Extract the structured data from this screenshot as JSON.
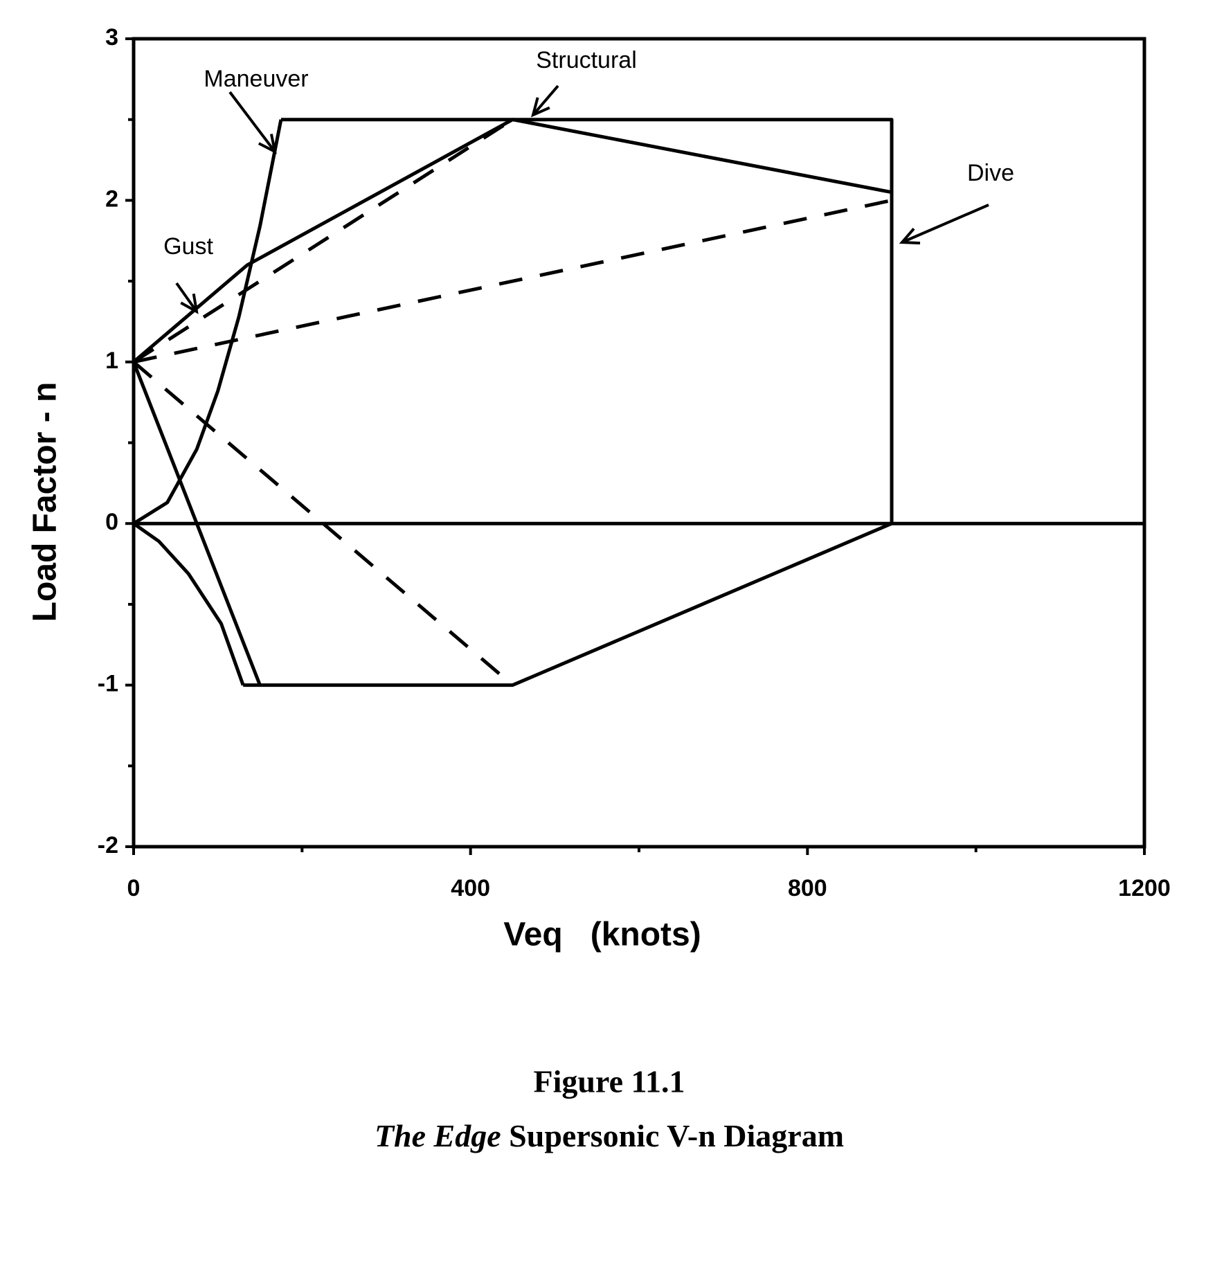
{
  "chart_data": {
    "type": "line",
    "xlabel": "Veq   (knots)",
    "ylabel": "Load Factor - n",
    "xlim": [
      0,
      1200
    ],
    "xticks": [
      0,
      400,
      800,
      1200
    ],
    "xticks_minor": [
      200,
      600,
      1000
    ],
    "ylim": [
      -2,
      3
    ],
    "yticks": [
      -2,
      -1,
      0,
      1,
      2,
      3
    ],
    "yticks_minor": [
      -1.5,
      -0.5,
      0.5,
      1.5,
      2.5
    ],
    "annotations": [
      "Maneuver",
      "Structural",
      "Dive",
      "Gust"
    ],
    "series": [
      {
        "color": "#000",
        "dashed": false,
        "x": [
          0,
          40,
          75,
          100,
          125,
          150,
          175
        ],
        "values": [
          0,
          0.13,
          0.46,
          0.82,
          1.28,
          1.84,
          2.5
        ]
      },
      {
        "color": "#000",
        "dashed": false,
        "x": [
          175,
          900,
          900
        ],
        "values": [
          2.5,
          2.5,
          0
        ]
      },
      {
        "color": "#000",
        "dashed": false,
        "x": [
          0,
          1200
        ],
        "values": [
          0,
          0
        ]
      },
      {
        "color": "#000",
        "dashed": false,
        "x": [
          900,
          450,
          130
        ],
        "values": [
          0,
          -1,
          -1
        ]
      },
      {
        "color": "#000",
        "dashed": false,
        "x": [
          0,
          30,
          65,
          104,
          130
        ],
        "values": [
          0,
          -0.11,
          -0.31,
          -0.62,
          -1
        ]
      },
      {
        "color": "#000",
        "dashed": false,
        "x": [
          0,
          135,
          450,
          900
        ],
        "values": [
          1,
          1.6,
          2.5,
          2.05
        ]
      },
      {
        "color": "#000",
        "dashed": false,
        "x": [
          0,
          150
        ],
        "values": [
          1,
          -1
        ]
      },
      {
        "color": "#000",
        "dashed": true,
        "x": [
          0,
          450
        ],
        "values": [
          1,
          2.5
        ]
      },
      {
        "color": "#000",
        "dashed": true,
        "x": [
          0,
          900
        ],
        "values": [
          1,
          2.0
        ]
      },
      {
        "color": "#000",
        "dashed": true,
        "x": [
          0,
          450
        ],
        "values": [
          1,
          -1
        ]
      }
    ]
  },
  "caption": {
    "figure": "Figure 11.1",
    "title_italic": "The Edge",
    "title_rest": "Supersonic V-n Diagram"
  }
}
